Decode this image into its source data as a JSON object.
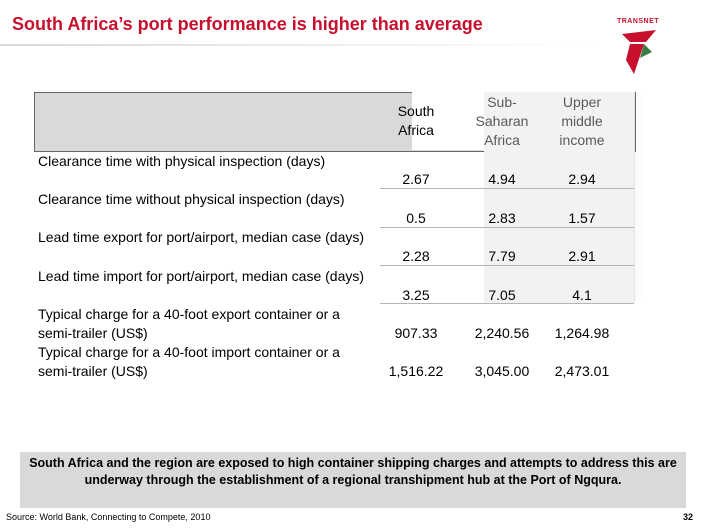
{
  "title": "South Africa’s port performance is higher than average",
  "logo": {
    "text": "TRANSNET"
  },
  "table": {
    "columns": [
      "South Africa",
      "Sub-Saharan Africa",
      "Upper middle income"
    ],
    "rows": [
      {
        "label": "Clearance time with physical inspection (days)",
        "values": [
          "2.67",
          "4.94",
          "2.94"
        ]
      },
      {
        "label": "Clearance time without physical inspection (days)",
        "values": [
          "0.5",
          "2.83",
          "1.57"
        ]
      },
      {
        "label": "Lead time export for port/airport, median case (days)",
        "values": [
          "2.28",
          "7.79",
          "2.91"
        ]
      },
      {
        "label": "Lead time import for port/airport, median case (days)",
        "values": [
          "3.25",
          "7.05",
          "4.1"
        ]
      },
      {
        "label": "Typical charge for a 40-foot export container or a semi-trailer (US$)",
        "values": [
          "907.33",
          "2,240.56",
          "1,264.98"
        ]
      },
      {
        "label": "Typical charge for a 40-foot import container or a semi-trailer (US$)",
        "values": [
          "1,516.22",
          "3,045.00",
          "2,473.01"
        ]
      }
    ]
  },
  "note": "South Africa and the region are exposed to high container shipping charges and attempts to address this are underway through the establishment of a regional transhipment hub at the Port of Ngqura.",
  "source": "Source: World Bank, Connecting to Compete, 2010",
  "page_number": "32"
}
